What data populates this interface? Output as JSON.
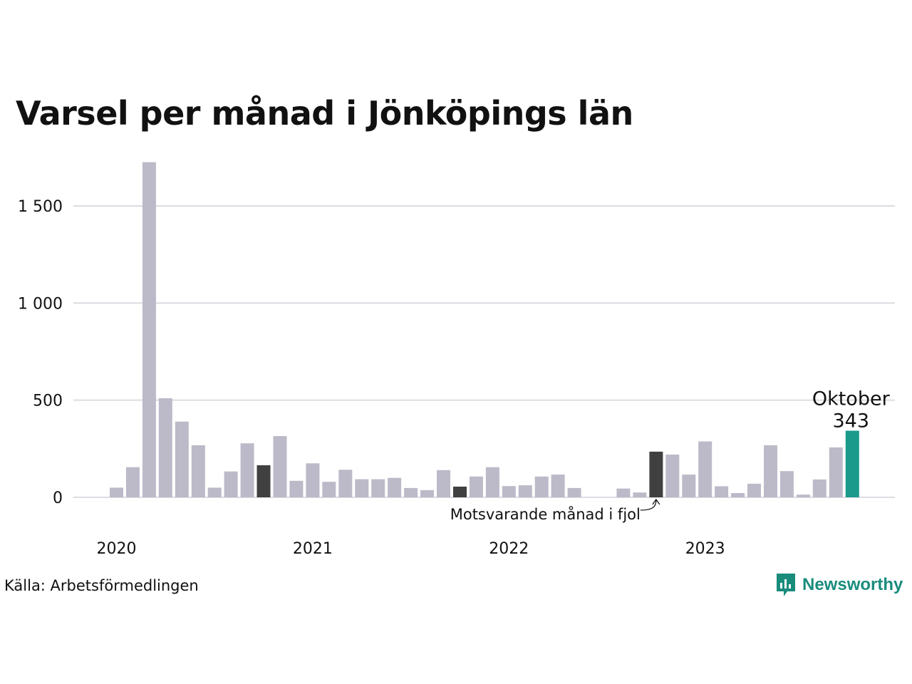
{
  "title": "Varsel per månad i Jönköpings län",
  "source": "Källa: Arbetsförmedlingen",
  "brand": {
    "name": "Newsworthy",
    "icon": "newsworthy-logo-icon"
  },
  "colors": {
    "default": "#bcbac8",
    "comparison": "#404040",
    "highlight": "#1a9a8a",
    "grid": "#dcdce2"
  },
  "annotation": {
    "highlight_month": "Oktober",
    "highlight_value": "343",
    "comparison_label": "Motsvarande månad i fjol"
  },
  "chart_data": {
    "type": "bar",
    "title": "Varsel per månad i Jönköpings län",
    "xlabel": "",
    "ylabel": "",
    "ylim": [
      0,
      1750
    ],
    "y_ticks": [
      {
        "value": 0,
        "label": "0"
      },
      {
        "value": 500,
        "label": "500"
      },
      {
        "value": 1000,
        "label": "1 000"
      },
      {
        "value": 1500,
        "label": "1 500"
      }
    ],
    "year_labels": [
      "2020",
      "2021",
      "2022",
      "2023"
    ],
    "grid": true,
    "categories": [
      "2020-01",
      "2020-02",
      "2020-03",
      "2020-04",
      "2020-05",
      "2020-06",
      "2020-07",
      "2020-08",
      "2020-09",
      "2020-10",
      "2020-11",
      "2020-12",
      "2021-01",
      "2021-02",
      "2021-03",
      "2021-04",
      "2021-05",
      "2021-06",
      "2021-07",
      "2021-08",
      "2021-09",
      "2021-10",
      "2021-11",
      "2021-12",
      "2022-01",
      "2022-02",
      "2022-03",
      "2022-04",
      "2022-05",
      "2022-06",
      "2022-07",
      "2022-08",
      "2022-09",
      "2022-10",
      "2022-11",
      "2022-12",
      "2023-01",
      "2023-02",
      "2023-03",
      "2023-04",
      "2023-05",
      "2023-06",
      "2023-07",
      "2023-08",
      "2023-09",
      "2023-10"
    ],
    "values": [
      50,
      155,
      1725,
      510,
      390,
      268,
      50,
      133,
      278,
      165,
      315,
      85,
      175,
      80,
      142,
      93,
      93,
      100,
      48,
      37,
      140,
      55,
      107,
      155,
      58,
      62,
      107,
      117,
      48,
      0,
      0,
      45,
      25,
      235,
      220,
      117,
      288,
      57,
      22,
      70,
      268,
      135,
      14,
      92,
      257,
      343
    ],
    "highlight_index": 45,
    "comparison_indices": [
      9,
      21,
      33
    ]
  }
}
